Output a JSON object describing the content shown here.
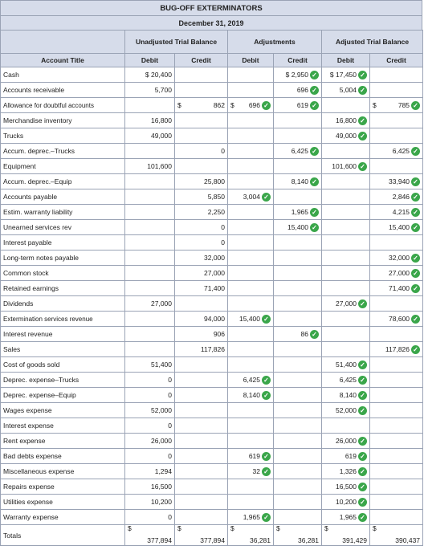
{
  "company": "BUG-OFF EXTERMINATORS",
  "date": "December 31, 2019",
  "groups": {
    "unadjusted": "Unadjusted Trial Balance",
    "adjustments": "Adjustments",
    "adjusted": "Adjusted Trial Balance"
  },
  "columns": {
    "account": "Account Title",
    "debit": "Debit",
    "credit": "Credit"
  },
  "rows": [
    {
      "name": "Cash",
      "cells": [
        [
          "$ 20,400",
          0
        ],
        [
          "",
          0
        ],
        [
          "",
          0
        ],
        [
          "$ 2,950",
          1
        ],
        [
          "$ 17,450",
          1
        ],
        [
          "",
          0
        ]
      ]
    },
    {
      "name": "Accounts receivable",
      "cells": [
        [
          "5,700",
          0
        ],
        [
          "",
          0
        ],
        [
          "",
          0
        ],
        [
          "696",
          1
        ],
        [
          "5,004",
          1
        ],
        [
          "",
          0
        ]
      ]
    },
    {
      "name": "Allowance for doubtful accounts",
      "cells": [
        [
          "",
          0
        ],
        [
          "862",
          0,
          "$"
        ],
        [
          "696",
          1,
          "$"
        ],
        [
          "619",
          1
        ],
        [
          "",
          0
        ],
        [
          "785",
          1,
          "$"
        ]
      ]
    },
    {
      "name": "Merchandise inventory",
      "cells": [
        [
          "16,800",
          0
        ],
        [
          "",
          0
        ],
        [
          "",
          0
        ],
        [
          "",
          0
        ],
        [
          "16,800",
          1
        ],
        [
          "",
          0
        ]
      ]
    },
    {
      "name": "Trucks",
      "cells": [
        [
          "49,000",
          0
        ],
        [
          "",
          0
        ],
        [
          "",
          0
        ],
        [
          "",
          0
        ],
        [
          "49,000",
          1
        ],
        [
          "",
          0
        ]
      ]
    },
    {
      "name": "Accum. deprec.–Trucks",
      "cells": [
        [
          "",
          0
        ],
        [
          "0",
          0
        ],
        [
          "",
          0
        ],
        [
          "6,425",
          1
        ],
        [
          "",
          0
        ],
        [
          "6,425",
          1
        ]
      ]
    },
    {
      "name": "Equipment",
      "cells": [
        [
          "101,600",
          0
        ],
        [
          "",
          0
        ],
        [
          "",
          0
        ],
        [
          "",
          0
        ],
        [
          "101,600",
          1
        ],
        [
          "",
          0
        ]
      ]
    },
    {
      "name": "Accum. deprec.–Equip",
      "cells": [
        [
          "",
          0
        ],
        [
          "25,800",
          0
        ],
        [
          "",
          0
        ],
        [
          "8,140",
          1
        ],
        [
          "",
          0
        ],
        [
          "33,940",
          1
        ]
      ]
    },
    {
      "name": "Accounts payable",
      "cells": [
        [
          "",
          0
        ],
        [
          "5,850",
          0
        ],
        [
          "3,004",
          1
        ],
        [
          "",
          0
        ],
        [
          "",
          0
        ],
        [
          "2,846",
          1
        ]
      ]
    },
    {
      "name": "Estim. warranty liability",
      "cells": [
        [
          "",
          0
        ],
        [
          "2,250",
          0
        ],
        [
          "",
          0
        ],
        [
          "1,965",
          1
        ],
        [
          "",
          0
        ],
        [
          "4,215",
          1
        ]
      ]
    },
    {
      "name": "Unearned services rev",
      "cells": [
        [
          "",
          0
        ],
        [
          "0",
          0
        ],
        [
          "",
          0
        ],
        [
          "15,400",
          1
        ],
        [
          "",
          0
        ],
        [
          "15,400",
          1
        ]
      ]
    },
    {
      "name": "Interest payable",
      "cells": [
        [
          "",
          0
        ],
        [
          "0",
          0
        ],
        [
          "",
          0
        ],
        [
          "",
          0
        ],
        [
          "",
          0
        ],
        [
          "",
          0
        ]
      ]
    },
    {
      "name": "Long-term notes payable",
      "cells": [
        [
          "",
          0
        ],
        [
          "32,000",
          0
        ],
        [
          "",
          0
        ],
        [
          "",
          0
        ],
        [
          "",
          0
        ],
        [
          "32,000",
          1
        ]
      ]
    },
    {
      "name": "Common stock",
      "cells": [
        [
          "",
          0
        ],
        [
          "27,000",
          0
        ],
        [
          "",
          0
        ],
        [
          "",
          0
        ],
        [
          "",
          0
        ],
        [
          "27,000",
          1
        ]
      ]
    },
    {
      "name": "Retained earnings",
      "cells": [
        [
          "",
          0
        ],
        [
          "71,400",
          0
        ],
        [
          "",
          0
        ],
        [
          "",
          0
        ],
        [
          "",
          0
        ],
        [
          "71,400",
          1
        ]
      ]
    },
    {
      "name": "Dividends",
      "cells": [
        [
          "27,000",
          0
        ],
        [
          "",
          0
        ],
        [
          "",
          0
        ],
        [
          "",
          0
        ],
        [
          "27,000",
          1
        ],
        [
          "",
          0
        ]
      ]
    },
    {
      "name": "Extermination services revenue",
      "cells": [
        [
          "",
          0
        ],
        [
          "94,000",
          0
        ],
        [
          "15,400",
          1
        ],
        [
          "",
          0
        ],
        [
          "",
          0
        ],
        [
          "78,600",
          1
        ]
      ]
    },
    {
      "name": "Interest revenue",
      "cells": [
        [
          "",
          0
        ],
        [
          "906",
          0
        ],
        [
          "",
          0
        ],
        [
          "86",
          1
        ],
        [
          "",
          0
        ],
        [
          "",
          0
        ]
      ]
    },
    {
      "name": "Sales",
      "cells": [
        [
          "",
          0
        ],
        [
          "117,826",
          0
        ],
        [
          "",
          0
        ],
        [
          "",
          0
        ],
        [
          "",
          0
        ],
        [
          "117,826",
          1
        ]
      ]
    },
    {
      "name": "Cost of goods sold",
      "cells": [
        [
          "51,400",
          0
        ],
        [
          "",
          0
        ],
        [
          "",
          0
        ],
        [
          "",
          0
        ],
        [
          "51,400",
          1
        ],
        [
          "",
          0
        ]
      ]
    },
    {
      "name": "Deprec. expense–Trucks",
      "cells": [
        [
          "0",
          0
        ],
        [
          "",
          0
        ],
        [
          "6,425",
          1
        ],
        [
          "",
          0
        ],
        [
          "6,425",
          1
        ],
        [
          "",
          0
        ]
      ]
    },
    {
      "name": "Deprec. expense–Equip",
      "cells": [
        [
          "0",
          0
        ],
        [
          "",
          0
        ],
        [
          "8,140",
          1
        ],
        [
          "",
          0
        ],
        [
          "8,140",
          1
        ],
        [
          "",
          0
        ]
      ]
    },
    {
      "name": "Wages expense",
      "cells": [
        [
          "52,000",
          0
        ],
        [
          "",
          0
        ],
        [
          "",
          0
        ],
        [
          "",
          0
        ],
        [
          "52,000",
          1
        ],
        [
          "",
          0
        ]
      ]
    },
    {
      "name": "Interest expense",
      "cells": [
        [
          "0",
          0
        ],
        [
          "",
          0
        ],
        [
          "",
          0
        ],
        [
          "",
          0
        ],
        [
          "",
          0
        ],
        [
          "",
          0
        ]
      ]
    },
    {
      "name": "Rent expense",
      "cells": [
        [
          "26,000",
          0
        ],
        [
          "",
          0
        ],
        [
          "",
          0
        ],
        [
          "",
          0
        ],
        [
          "26,000",
          1
        ],
        [
          "",
          0
        ]
      ]
    },
    {
      "name": "Bad debts expense",
      "cells": [
        [
          "0",
          0
        ],
        [
          "",
          0
        ],
        [
          "619",
          1
        ],
        [
          "",
          0
        ],
        [
          "619",
          1
        ],
        [
          "",
          0
        ]
      ]
    },
    {
      "name": "Miscellaneous expense",
      "cells": [
        [
          "1,294",
          0
        ],
        [
          "",
          0
        ],
        [
          "32",
          1
        ],
        [
          "",
          0
        ],
        [
          "1,326",
          1
        ],
        [
          "",
          0
        ]
      ]
    },
    {
      "name": "Repairs expense",
      "cells": [
        [
          "16,500",
          0
        ],
        [
          "",
          0
        ],
        [
          "",
          0
        ],
        [
          "",
          0
        ],
        [
          "16,500",
          1
        ],
        [
          "",
          0
        ]
      ]
    },
    {
      "name": "Utilities expense",
      "cells": [
        [
          "10,200",
          0
        ],
        [
          "",
          0
        ],
        [
          "",
          0
        ],
        [
          "",
          0
        ],
        [
          "10,200",
          1
        ],
        [
          "",
          0
        ]
      ]
    },
    {
      "name": "Warranty expense",
      "cells": [
        [
          "0",
          0
        ],
        [
          "",
          0
        ],
        [
          "1,965",
          1
        ],
        [
          "",
          0
        ],
        [
          "1,965",
          1
        ],
        [
          "",
          0
        ]
      ]
    }
  ],
  "totals": {
    "label": "Totals",
    "currency": "$",
    "values": [
      "377,894",
      "377,894",
      "36,281",
      "36,281",
      "391,429",
      "390,437"
    ]
  },
  "check_icon": "check-circle-icon",
  "colors": {
    "header_bg": "#d6dcea",
    "border": "#9aa3b5",
    "check": "#3aa64a"
  }
}
